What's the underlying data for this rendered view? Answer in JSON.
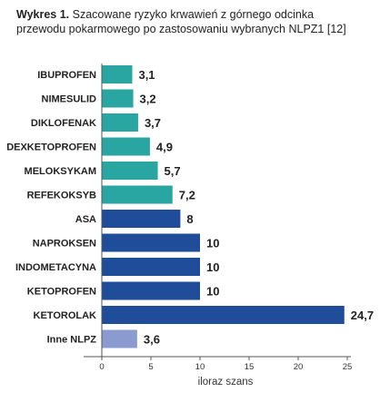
{
  "title": {
    "prefix": "Wykres 1.",
    "line1": "Szacowane ryzyko krwawień z górnego odcinka",
    "line2": "przewodu pokarmowego po zastosowaniu wybranych NLPZ1 [12]"
  },
  "colors": {
    "teal": "#2aa6a2",
    "blue": "#1f4d9a",
    "lavender": "#8b9bd0",
    "axis": "#555555"
  },
  "chart_data": {
    "type": "bar",
    "orientation": "horizontal",
    "categories": [
      "IBUPROFEN",
      "NIMESULID",
      "DIKLOFENAK",
      "DEXKETOPROFEN",
      "MELOKSYKAM",
      "REFEKOKSYB",
      "ASA",
      "NAPROKSEN",
      "INDOMETACYNA",
      "KETOPROFEN",
      "KETOROLAK",
      "Inne NLPZ"
    ],
    "values": [
      3.1,
      3.2,
      3.7,
      4.9,
      5.7,
      7.2,
      8,
      10,
      10,
      10,
      24.7,
      3.6
    ],
    "value_labels": [
      "3,1",
      "3,2",
      "3,7",
      "4,9",
      "5,7",
      "7,2",
      "8",
      "10",
      "10",
      "10",
      "24,7",
      "3,6"
    ],
    "bar_colors": [
      "teal",
      "teal",
      "teal",
      "teal",
      "teal",
      "teal",
      "blue",
      "blue",
      "blue",
      "blue",
      "blue",
      "lavender"
    ],
    "xlabel": "iloraz szans",
    "ylabel": "",
    "xlim": [
      0,
      25
    ],
    "xticks": [
      0,
      5,
      10,
      15,
      20,
      25
    ],
    "xtick_labels": [
      "0",
      "5",
      "10",
      "15",
      "20",
      "25"
    ],
    "grid": false,
    "legend": "none"
  }
}
